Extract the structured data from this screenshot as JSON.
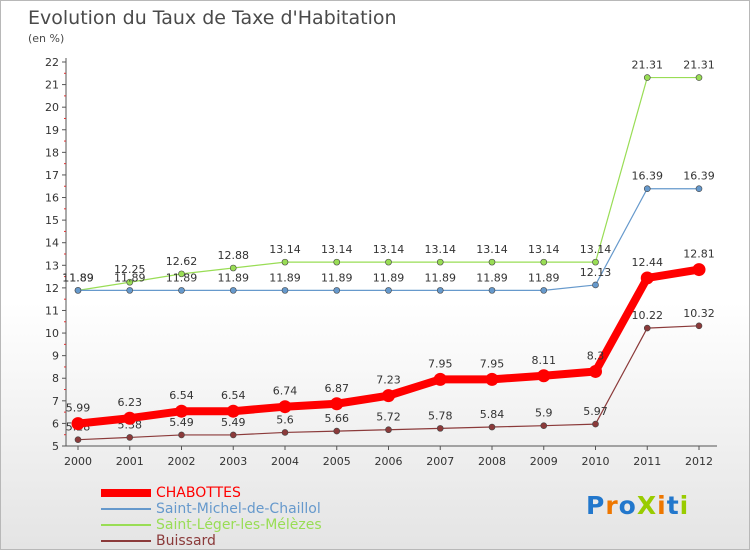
{
  "chart_data": {
    "type": "line",
    "title": "Evolution du Taux de Taxe d'Habitation",
    "subtitle": "(en %)",
    "x": [
      "2000",
      "2001",
      "2002",
      "2003",
      "2004",
      "2005",
      "2006",
      "2007",
      "2008",
      "2009",
      "2010",
      "2011",
      "2012"
    ],
    "ylim": [
      5,
      22
    ],
    "yticks": [
      5,
      6,
      7,
      8,
      9,
      10,
      11,
      12,
      13,
      14,
      15,
      16,
      17,
      18,
      19,
      20,
      21,
      22
    ],
    "grid": false,
    "legend_position": "bottom-left",
    "series": [
      {
        "name": "CHABOTTES",
        "color": "#ff0000",
        "values": [
          5.99,
          6.23,
          6.54,
          6.54,
          6.74,
          6.87,
          7.23,
          7.95,
          7.95,
          8.11,
          8.3,
          12.44,
          12.81
        ],
        "labels": [
          "5.99",
          "6.23",
          "6.54",
          "6.54",
          "6.74",
          "6.87",
          "7.23",
          "7.95",
          "7.95",
          "8.11",
          "8.3",
          "12.44",
          "12.81"
        ]
      },
      {
        "name": "Saint-Michel-de-Chaillol",
        "color": "#6699cc",
        "values": [
          11.89,
          11.89,
          11.89,
          11.89,
          11.89,
          11.89,
          11.89,
          11.89,
          11.89,
          11.89,
          12.13,
          16.39,
          16.39
        ],
        "labels": [
          "11.89",
          "11.89",
          "11.89",
          "11.89",
          "11.89",
          "11.89",
          "11.89",
          "11.89",
          "11.89",
          "11.89",
          "12.13",
          "16.39",
          "16.39"
        ]
      },
      {
        "name": "Saint-Léger-les-Mélèzes",
        "color": "#99dd55",
        "values": [
          11.89,
          12.25,
          12.62,
          12.88,
          13.14,
          13.14,
          13.14,
          13.14,
          13.14,
          13.14,
          13.14,
          21.31,
          21.31
        ],
        "labels": [
          "11.89",
          "12.25",
          "12.62",
          "12.88",
          "13.14",
          "13.14",
          "13.14",
          "13.14",
          "13.14",
          "13.14",
          "13.14",
          "21.31",
          "21.31"
        ]
      },
      {
        "name": "Buissard",
        "color": "#8b3a3a",
        "values": [
          5.28,
          5.38,
          5.49,
          5.49,
          5.6,
          5.66,
          5.72,
          5.78,
          5.84,
          5.9,
          5.97,
          10.22,
          10.32
        ],
        "labels": [
          "5.28",
          "5.38",
          "5.49",
          "5.49",
          "5.6",
          "5.66",
          "5.72",
          "5.78",
          "5.84",
          "5.9",
          "5.97",
          "10.22",
          "10.32"
        ]
      }
    ]
  },
  "logo": {
    "text": "ProXiti",
    "letter_colors": [
      "#2277cc",
      "#ee7700",
      "#2277cc",
      "#99cc00",
      "#ee7700",
      "#2277cc",
      "#99cc00"
    ]
  }
}
